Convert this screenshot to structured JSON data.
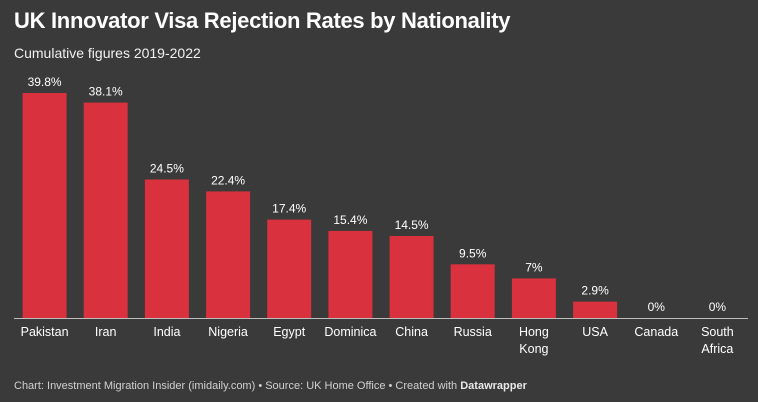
{
  "chart_data": {
    "type": "bar",
    "title": "UK Innovator Visa Rejection Rates by Nationality",
    "subtitle": "Cumulative figures 2019-2022",
    "categories": [
      "Pakistan",
      "Iran",
      "India",
      "Nigeria",
      "Egypt",
      "Dominica",
      "China",
      "Russia",
      "Hong Kong",
      "USA",
      "Canada",
      "South Africa"
    ],
    "category_lines": [
      [
        "Pakistan"
      ],
      [
        "Iran"
      ],
      [
        "India"
      ],
      [
        "Nigeria"
      ],
      [
        "Egypt"
      ],
      [
        "Dominica"
      ],
      [
        "China"
      ],
      [
        "Russia"
      ],
      [
        "Hong",
        "Kong"
      ],
      [
        "USA"
      ],
      [
        "Canada"
      ],
      [
        "South",
        "Africa"
      ]
    ],
    "values": [
      39.8,
      38.1,
      24.5,
      22.4,
      17.4,
      15.4,
      14.5,
      9.5,
      7,
      2.9,
      0,
      0
    ],
    "value_labels": [
      "39.8%",
      "38.1%",
      "24.5%",
      "22.4%",
      "17.4%",
      "15.4%",
      "14.5%",
      "9.5%",
      "7%",
      "2.9%",
      "0%",
      "0%"
    ],
    "ylim": [
      0,
      39.8
    ],
    "grid": false,
    "legend": "none",
    "bar_color": "#d9313e"
  },
  "footer": {
    "prefix": "Chart: Investment Migration Insider (imidaily.com) • Source: UK Home Office • Created with ",
    "brand": "Datawrapper"
  },
  "colors": {
    "background": "#3a3a3a",
    "baseline": "#bdbdbd"
  }
}
